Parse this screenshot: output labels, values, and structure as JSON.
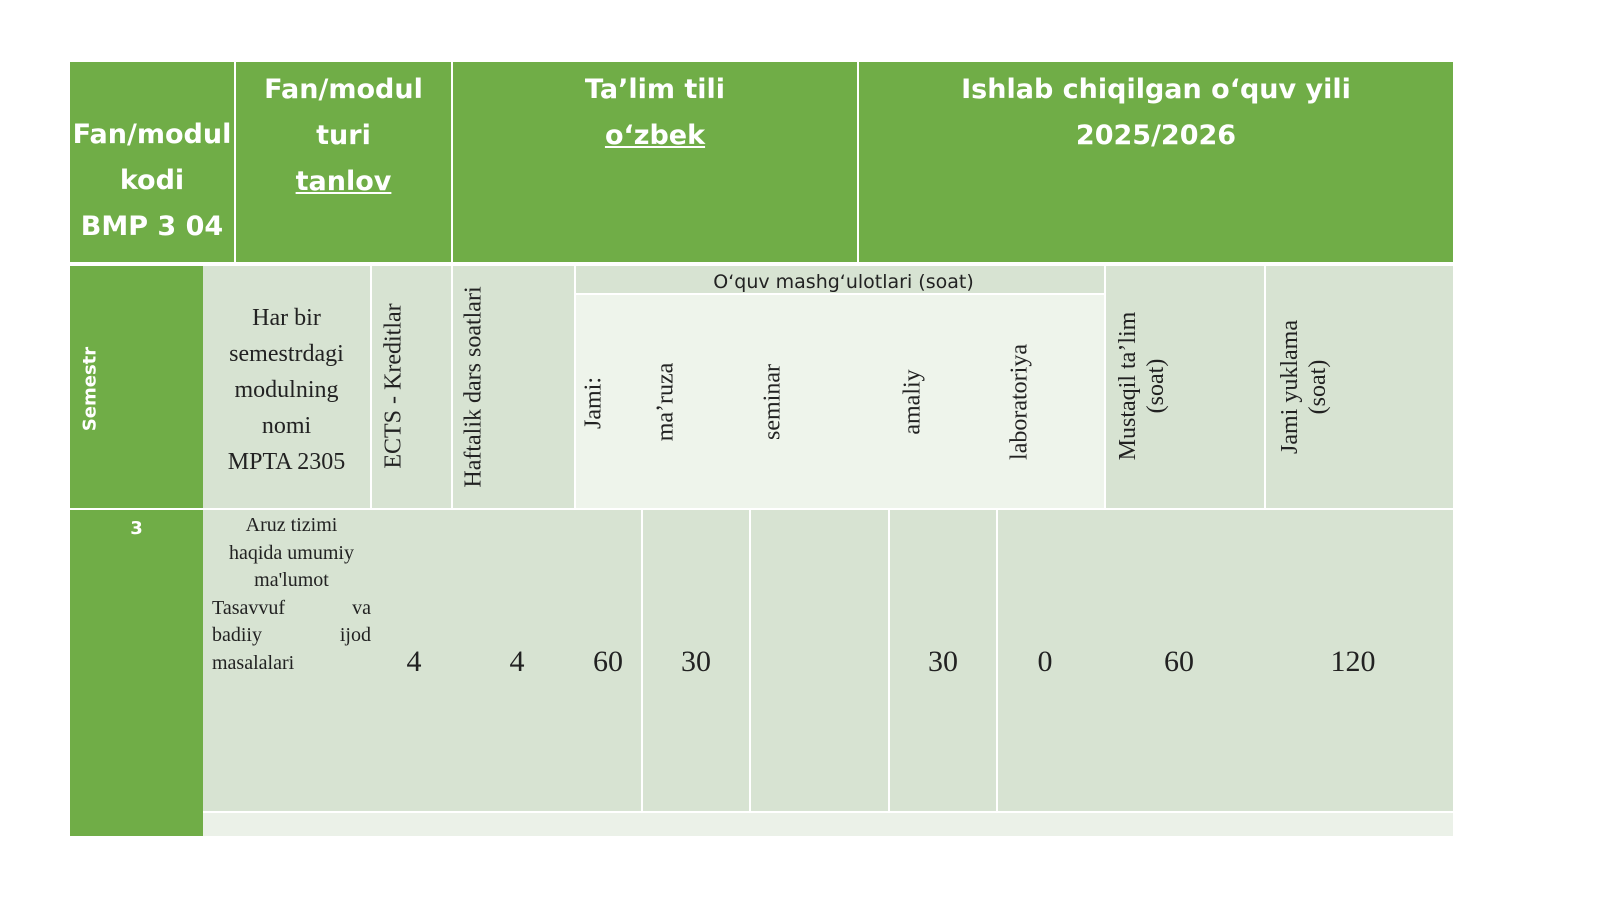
{
  "header": {
    "code_label_1": "Fan/modul",
    "code_label_2": "kodi",
    "code_value": "BMP 3 04",
    "type_label": "Fan/modul turi",
    "type_value": "tanlov",
    "lang_label": "Ta’lim tili",
    "lang_value": "o‘zbek",
    "year_label": "Ishlab chiqilgan o‘quv yili",
    "year_value": "2025/2026"
  },
  "columns": {
    "semester": "Semestr",
    "module_name": [
      "Har bir",
      "semestrdagi",
      "modulning",
      "nomi",
      "MPTA 2305"
    ],
    "ects": "ECTS - Kreditlar",
    "weekly": "Haftalik dars soatlari",
    "group": "O‘quv mashg‘ulotlari (soat)",
    "total": "Jami:",
    "lecture": "ma’ruza",
    "seminar": "seminar",
    "practical": "amaliy",
    "lab": "laboratoriya",
    "independent": [
      "Mustaqil ta’lim",
      "(soat)"
    ],
    "load": [
      "Jami yuklama",
      "(soat)"
    ]
  },
  "row": {
    "semester": "3",
    "module_lines": [
      "Aruz tizimi",
      "haqida umumiy",
      "ma'lumot"
    ],
    "module_just": [
      [
        "Tasavvuf",
        "va"
      ],
      [
        "badiiy",
        "ijod"
      ]
    ],
    "module_last": "masalalari",
    "ects": "4",
    "weekly": "4",
    "total": "60",
    "lecture": "30",
    "seminar": "",
    "practical": "30",
    "lab": "0",
    "independent": "60",
    "load": "120"
  }
}
